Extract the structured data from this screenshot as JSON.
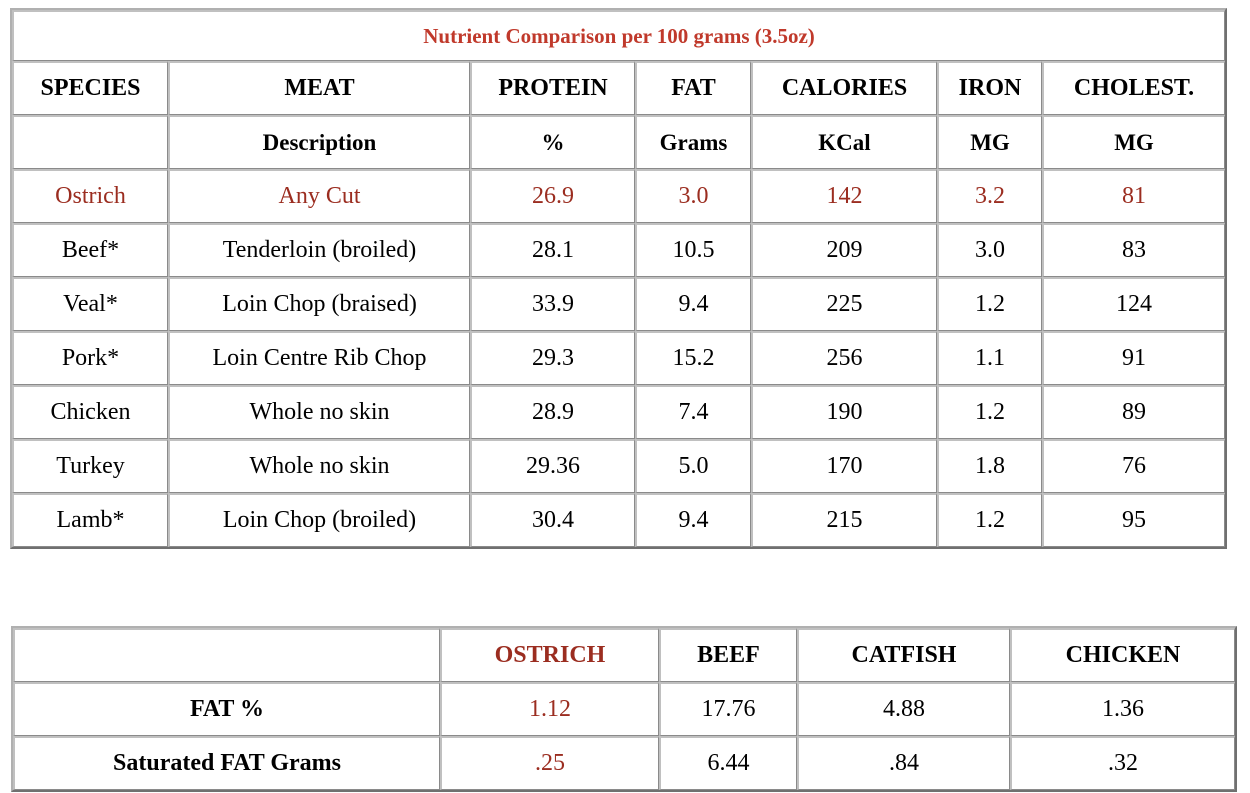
{
  "nutrient_table": {
    "title": "Nutrient Comparison per 100 grams (3.5oz)",
    "headers": [
      "SPECIES",
      "MEAT",
      "PROTEIN",
      "FAT",
      "CALORIES",
      "IRON",
      "CHOLEST."
    ],
    "subheaders": [
      "",
      "Description",
      "%",
      "Grams",
      "KCal",
      "MG",
      "MG"
    ],
    "rows": [
      [
        "Ostrich",
        "Any Cut",
        "26.9",
        "3.0",
        "142",
        "3.2",
        "81"
      ],
      [
        "Beef*",
        "Tenderloin (broiled)",
        "28.1",
        "10.5",
        "209",
        "3.0",
        "83"
      ],
      [
        "Veal*",
        "Loin Chop (braised)",
        "33.9",
        "9.4",
        "225",
        "1.2",
        "124"
      ],
      [
        "Pork*",
        "Loin Centre Rib Chop",
        "29.3",
        "15.2",
        "256",
        "1.1",
        "91"
      ],
      [
        "Chicken",
        "Whole no skin",
        "28.9",
        "7.4",
        "190",
        "1.2",
        "89"
      ],
      [
        "Turkey",
        "Whole no skin",
        "29.36",
        "5.0",
        "170",
        "1.8",
        "76"
      ],
      [
        "Lamb*",
        "Loin Chop (broiled)",
        "30.4",
        "9.4",
        "215",
        "1.2",
        "95"
      ]
    ]
  },
  "fat_table": {
    "headers": [
      "",
      "OSTRICH",
      "BEEF",
      "CATFISH",
      "CHICKEN"
    ],
    "rows": [
      [
        "FAT %",
        "1.12",
        "17.76",
        "4.88",
        "1.36"
      ],
      [
        "Saturated FAT Grams",
        ".25",
        "6.44",
        ".84",
        ".32"
      ]
    ]
  },
  "colors": {
    "title": "#c0392b",
    "ostrich_highlight": "#9b2d20",
    "border": "#c0c0c0"
  }
}
